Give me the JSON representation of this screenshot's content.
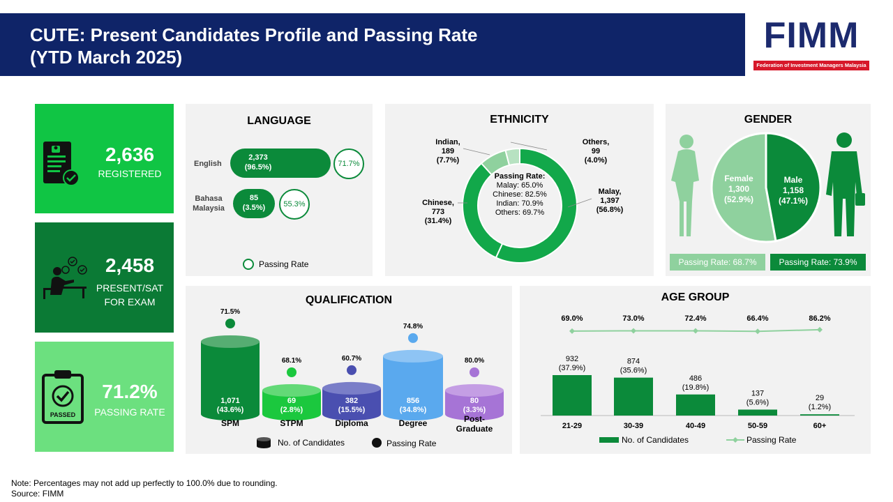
{
  "header": {
    "title_line1": "CUTE: Present Candidates Profile and Passing Rate",
    "title_line2": "(YTD March 2025)"
  },
  "logo": {
    "text": "FIMM",
    "tagline": "Federation of Investment Managers Malaysia"
  },
  "kpis": [
    {
      "value": "2,636",
      "label": "REGISTERED",
      "icon": "registration-document-icon",
      "color": "#10c544"
    },
    {
      "value": "2,458",
      "label_line1": "PRESENT/SAT",
      "label_line2": "FOR EXAM",
      "icon": "candidate-at-desk-icon",
      "color": "#0b7a35"
    },
    {
      "value": "71.2%",
      "label": "PASSING RATE",
      "icon": "passed-clipboard-icon",
      "icon_label": "PASSED",
      "color": "#6ce07f"
    }
  ],
  "colors": {
    "dark_green": "#0b8a3a",
    "mid_green": "#12a84a",
    "light_green": "#8fd19e",
    "bright_green": "#1bc83e",
    "navy": "#0f2468",
    "panel": "#f2f2f2"
  },
  "language": {
    "title": "LANGUAGE",
    "items": [
      {
        "name": "English",
        "count": "2,373",
        "pct": "(96.5%)",
        "rate": "71.7%",
        "share": 0.965
      },
      {
        "name_line1": "Bahasa",
        "name_line2": "Malaysia",
        "count": "85",
        "pct": "(3.5%)",
        "rate": "55.3%",
        "share": 0.035
      }
    ],
    "legend": "Passing Rate"
  },
  "ethnicity": {
    "title": "ETHNICITY",
    "center_title": "Passing Rate:",
    "center_lines": [
      "Malay: 65.0%",
      "Chinese: 82.5%",
      "Indian: 70.9%",
      "Others: 69.7%"
    ],
    "labels": {
      "malay": [
        "Malay,",
        "1,397",
        "(56.8%)"
      ],
      "chinese": [
        "Chinese,",
        "773",
        "(31.4%)"
      ],
      "indian": [
        "Indian,",
        "189",
        "(7.7%)"
      ],
      "others": [
        "Others,",
        "99",
        "(4.0%)"
      ]
    }
  },
  "gender": {
    "title": "GENDER",
    "female": {
      "label": "Female",
      "count": "1,300",
      "pct": "(52.9%)",
      "rate": "Passing Rate: 68.7%"
    },
    "male": {
      "label": "Male",
      "count": "1,158",
      "pct": "(47.1%)",
      "rate": "Passing Rate: 73.9%"
    }
  },
  "qualification": {
    "title": "QUALIFICATION",
    "legend": {
      "candidates": "No. of Candidates",
      "rate": "Passing Rate"
    },
    "items": [
      {
        "name": "SPM",
        "count": "1,071",
        "pct": "(43.6%)",
        "rate": "71.5%",
        "color": "#0b8a3a",
        "top": "#56ad72",
        "dot": "#0b8a3a"
      },
      {
        "name": "STPM",
        "count": "69",
        "pct": "(2.8%)",
        "rate": "68.1%",
        "color": "#1bc83e",
        "top": "#63d977",
        "dot": "#1bc83e"
      },
      {
        "name": "Diploma",
        "count": "382",
        "pct": "(15.5%)",
        "rate": "60.7%",
        "color": "#4a4fb0",
        "top": "#7a7ec8",
        "dot": "#4a4fb0"
      },
      {
        "name": "Degree",
        "count": "856",
        "pct": "(34.8%)",
        "rate": "74.8%",
        "color": "#5aa9ee",
        "top": "#8ec4f4",
        "dot": "#5aa9ee"
      },
      {
        "name_line1": "Post-",
        "name_line2": "Graduate",
        "count": "80",
        "pct": "(3.3%)",
        "rate": "80.0%",
        "color": "#a674d6",
        "top": "#c49ee4",
        "dot": "#a674d6"
      }
    ]
  },
  "age": {
    "title": "AGE GROUP",
    "legend": {
      "candidates": "No. of Candidates",
      "rate": "Passing Rate"
    }
  },
  "chart_data": [
    {
      "type": "bar",
      "title": "AGE GROUP",
      "categories": [
        "21-29",
        "30-39",
        "40-49",
        "50-59",
        "60+"
      ],
      "series": [
        {
          "name": "No. of Candidates",
          "values": [
            932,
            874,
            486,
            137,
            29
          ],
          "labels": [
            "(37.9%)",
            "(35.6%)",
            "(19.8%)",
            "(5.6%)",
            "(1.2%)"
          ]
        },
        {
          "name": "Passing Rate",
          "values": [
            69.0,
            73.0,
            72.4,
            66.4,
            86.2
          ],
          "labels": [
            "69.0%",
            "73.0%",
            "72.4%",
            "66.4%",
            "86.2%"
          ]
        }
      ],
      "count_labels": [
        "932",
        "874",
        "486",
        "137",
        "29"
      ]
    },
    {
      "type": "pie",
      "title": "ETHNICITY",
      "categories": [
        "Malay",
        "Chinese",
        "Indian",
        "Others"
      ],
      "values": [
        1397,
        773,
        189,
        99
      ]
    },
    {
      "type": "pie",
      "title": "GENDER",
      "categories": [
        "Female",
        "Male"
      ],
      "values": [
        1300,
        1158
      ]
    }
  ],
  "footnote": {
    "line1": "Note: Percentages may not add up perfectly to 100.0% due to rounding.",
    "line2": "Source: FIMM"
  }
}
